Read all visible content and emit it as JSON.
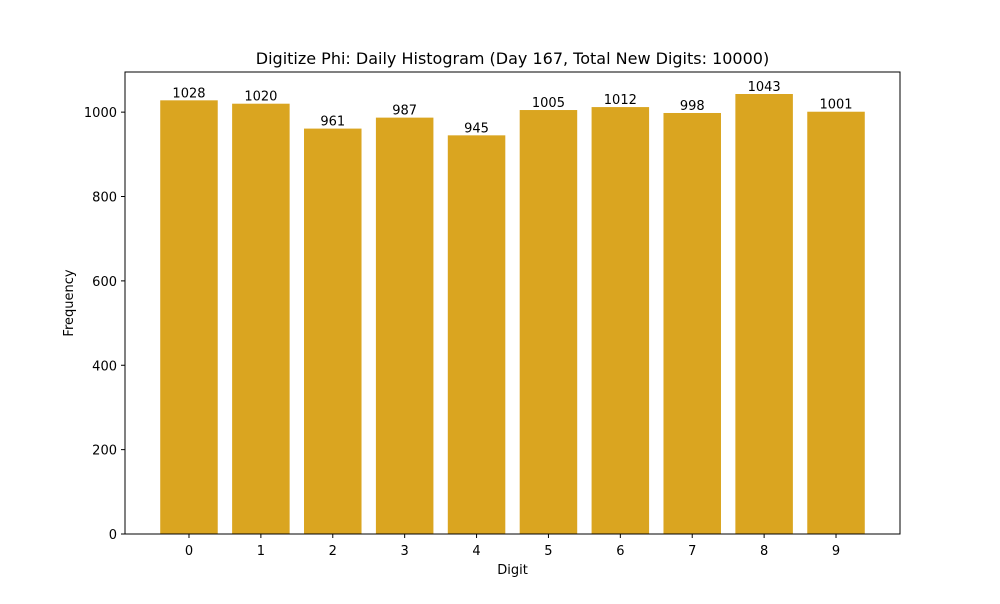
{
  "chart_data": {
    "type": "bar",
    "title": "Digitize Phi: Daily Histogram (Day 167, Total New Digits: 10000)",
    "xlabel": "Digit",
    "ylabel": "Frequency",
    "categories": [
      "0",
      "1",
      "2",
      "3",
      "4",
      "5",
      "6",
      "7",
      "8",
      "9"
    ],
    "values": [
      1028,
      1020,
      961,
      987,
      945,
      1005,
      1012,
      998,
      1043,
      1001
    ],
    "ylim": [
      0,
      1095.15
    ],
    "xlim": [
      -0.89,
      9.89
    ],
    "yticks": [
      0,
      200,
      400,
      600,
      800,
      1000
    ],
    "bar_color": "#DAA520",
    "grid": false,
    "legend": "none"
  }
}
